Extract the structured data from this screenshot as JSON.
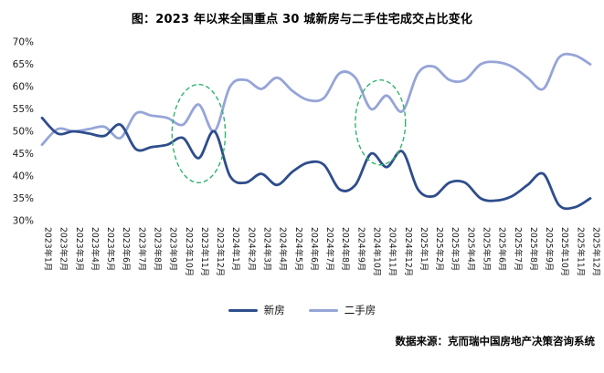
{
  "chart_data": {
    "type": "line",
    "title": "图：2023 年以来全国重点 30 城新房与二手住宅成交占比变化",
    "xlabel": "",
    "ylabel": "",
    "ylim": [
      30,
      70
    ],
    "grid": false,
    "legend_position": "bottom",
    "yticks": [
      "70%",
      "65%",
      "60%",
      "55%",
      "50%",
      "45%",
      "40%",
      "35%",
      "30%"
    ],
    "ytick_values": [
      70,
      65,
      60,
      55,
      50,
      45,
      40,
      35,
      30
    ],
    "categories": [
      "2023年1月",
      "2023年2月",
      "2023年3月",
      "2023年4月",
      "2023年5月",
      "2023年6月",
      "2023年7月",
      "2023年8月",
      "2023年9月",
      "2023年10月",
      "2023年11月",
      "2023年12月",
      "2024年1月",
      "2024年2月",
      "2024年3月",
      "2024年4月",
      "2024年5月",
      "2024年6月",
      "2024年7月",
      "2024年8月",
      "2024年9月",
      "2024年10月",
      "2024年11月",
      "2024年12月",
      "2025年1月",
      "2025年2月",
      "2025年3月",
      "2025年4月",
      "2025年5月",
      "2025年6月",
      "2025年7月",
      "2025年8月",
      "2025年9月",
      "2025年10月",
      "2025年11月",
      "2025年12月"
    ],
    "series": [
      {
        "name": "新房",
        "color": "#2e4d8c",
        "values": [
          53,
          49.5,
          50,
          49.5,
          49,
          51.5,
          46,
          46.5,
          47,
          48.5,
          44,
          50,
          40,
          38.5,
          40.5,
          38,
          41,
          43,
          42.5,
          37,
          38,
          45,
          42,
          45.5,
          37,
          35.5,
          38.5,
          38.5,
          35,
          34.5,
          35.5,
          38,
          40.5,
          33.5,
          33,
          35
        ]
      },
      {
        "name": "二手房",
        "color": "#96a5d8",
        "values": [
          47,
          50.5,
          50,
          50.5,
          51,
          48.5,
          54,
          53.5,
          53,
          51.5,
          56,
          50,
          60,
          61.5,
          59.5,
          62,
          59,
          57,
          57.5,
          63,
          62,
          55,
          58,
          54.5,
          63,
          64.5,
          61.5,
          61.5,
          65,
          65.5,
          64.5,
          62,
          59.5,
          66.5,
          67,
          65
        ]
      }
    ],
    "annotations": [
      {
        "type": "ellipse",
        "label": "highlight-2023Q4",
        "cx_month": 10,
        "cy_pct": 49.5,
        "rx_months": 1.7,
        "ry_pct": 11,
        "color": "#2fb46c"
      },
      {
        "type": "ellipse",
        "label": "highlight-2024Q4",
        "cx_month": 21.6,
        "cy_pct": 52,
        "rx_months": 1.6,
        "ry_pct": 9.5,
        "color": "#2fb46c"
      }
    ]
  },
  "legend": {
    "items": [
      {
        "label": "新房"
      },
      {
        "label": "二手房"
      }
    ]
  },
  "footer": {
    "source": "数据来源：克而瑞中国房地产决策咨询系统"
  }
}
